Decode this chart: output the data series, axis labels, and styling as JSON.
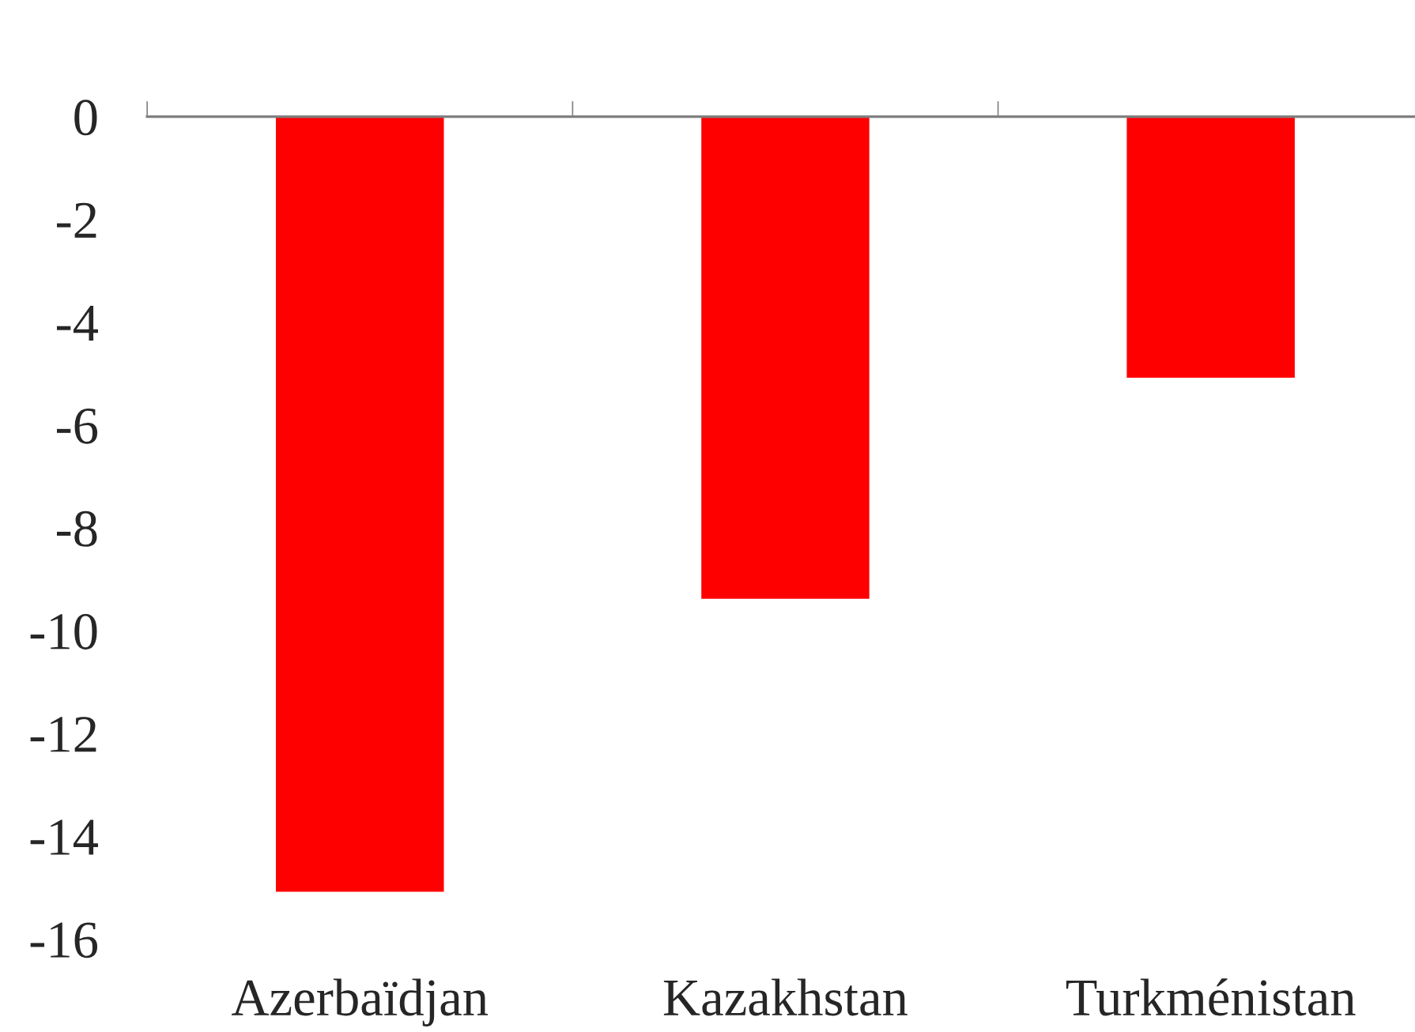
{
  "chart_data": {
    "type": "bar",
    "categories": [
      "Azerbaïdjan",
      "Kazakhstan",
      "Turkménistan"
    ],
    "values": [
      -15.1,
      -9.4,
      -5.1
    ],
    "color": "#ff0000",
    "ylim": [
      -16,
      0
    ],
    "yticks": [
      -16,
      -14,
      -12,
      -10,
      -8,
      -6,
      -4,
      -2,
      0
    ],
    "grid": false
  }
}
